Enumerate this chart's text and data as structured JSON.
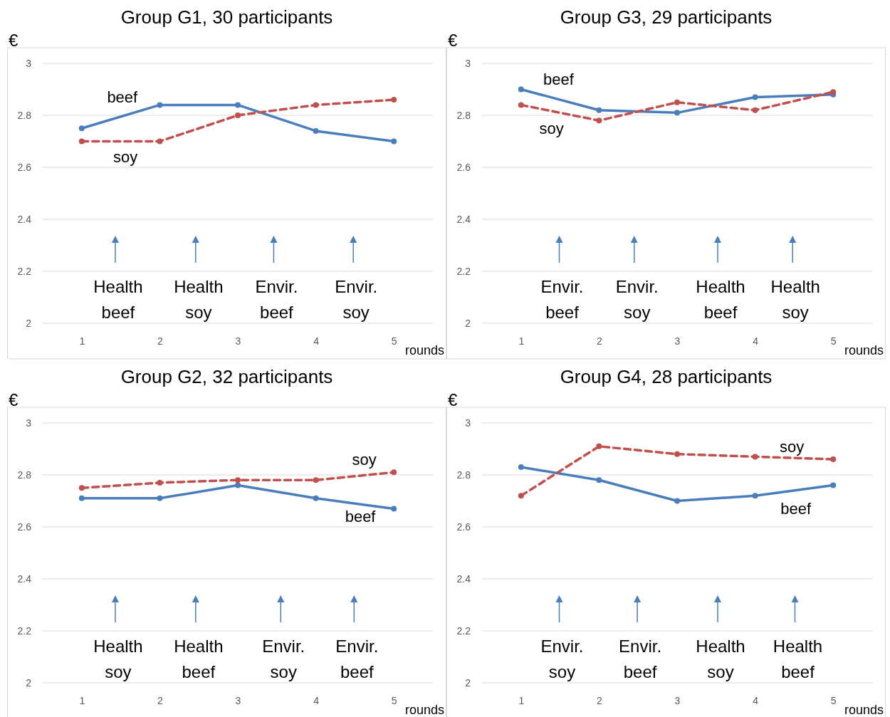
{
  "chart_data": [
    {
      "type": "line",
      "title": "Group G1, 30 participants",
      "xlabel": "rounds",
      "ylabel": "€",
      "x": [
        1,
        2,
        3,
        4,
        5
      ],
      "xlim": [
        0.5,
        5.5
      ],
      "xticks": [
        1,
        2,
        3,
        4,
        5
      ],
      "ylim": [
        2,
        3
      ],
      "yticks": [
        2,
        2.2,
        2.4,
        2.6,
        2.8,
        3
      ],
      "grid": "y",
      "marker": "circle",
      "series": [
        {
          "name": "beef",
          "color": "#4a7ebb",
          "line_style": "solid",
          "values": [
            2.75,
            2.84,
            2.84,
            2.74,
            2.7
          ]
        },
        {
          "name": "soy",
          "color": "#c0504d",
          "line_style": "dashed",
          "values": [
            2.7,
            2.7,
            2.8,
            2.84,
            2.86
          ]
        }
      ],
      "annotations": [
        "Health\nbeef",
        "Health\nsoy",
        "Envir.\nbeef",
        "Envir.\nsoy"
      ]
    },
    {
      "type": "line",
      "title": "Group G3, 29 participants",
      "xlabel": "rounds",
      "ylabel": "€",
      "x": [
        1,
        2,
        3,
        4,
        5
      ],
      "xlim": [
        0.5,
        5.5
      ],
      "xticks": [
        1,
        2,
        3,
        4,
        5
      ],
      "ylim": [
        2,
        3
      ],
      "yticks": [
        2,
        2.2,
        2.4,
        2.6,
        2.8,
        3
      ],
      "grid": "y",
      "marker": "circle",
      "series": [
        {
          "name": "beef",
          "color": "#4a7ebb",
          "line_style": "solid",
          "values": [
            2.9,
            2.82,
            2.81,
            2.87,
            2.88
          ]
        },
        {
          "name": "soy",
          "color": "#c0504d",
          "line_style": "dashed",
          "values": [
            2.84,
            2.78,
            2.85,
            2.82,
            2.89
          ]
        }
      ],
      "annotations": [
        "Envir.\nbeef",
        "Envir.\nsoy",
        "Health\nbeef",
        "Health\nsoy"
      ]
    },
    {
      "type": "line",
      "title": "Group G2, 32 participants",
      "xlabel": "rounds",
      "ylabel": "€",
      "x": [
        1,
        2,
        3,
        4,
        5
      ],
      "xlim": [
        0.5,
        5.5
      ],
      "xticks": [
        1,
        2,
        3,
        4,
        5
      ],
      "ylim": [
        2,
        3
      ],
      "yticks": [
        2,
        2.2,
        2.4,
        2.6,
        2.8,
        3
      ],
      "grid": "y",
      "marker": "circle",
      "series": [
        {
          "name": "beef",
          "color": "#4a7ebb",
          "line_style": "solid",
          "values": [
            2.71,
            2.71,
            2.76,
            2.71,
            2.67
          ]
        },
        {
          "name": "soy",
          "color": "#c0504d",
          "line_style": "dashed",
          "values": [
            2.75,
            2.77,
            2.78,
            2.78,
            2.81
          ]
        }
      ],
      "annotations": [
        "Health\nsoy",
        "Health\nbeef",
        "Envir.\nsoy",
        "Envir.\nbeef"
      ]
    },
    {
      "type": "line",
      "title": "Group G4, 28 participants",
      "xlabel": "rounds",
      "ylabel": "€",
      "x": [
        1,
        2,
        3,
        4,
        5
      ],
      "xlim": [
        0.5,
        5.5
      ],
      "xticks": [
        1,
        2,
        3,
        4,
        5
      ],
      "ylim": [
        2,
        3
      ],
      "yticks": [
        2,
        2.2,
        2.4,
        2.6,
        2.8,
        3
      ],
      "grid": "y",
      "marker": "circle",
      "series": [
        {
          "name": "beef",
          "color": "#4a7ebb",
          "line_style": "solid",
          "values": [
            2.83,
            2.78,
            2.7,
            2.72,
            2.76
          ]
        },
        {
          "name": "soy",
          "color": "#c0504d",
          "line_style": "dashed",
          "values": [
            2.72,
            2.91,
            2.88,
            2.87,
            2.86
          ]
        }
      ],
      "annotations": [
        "Envir.\nsoy",
        "Envir.\nbeef",
        "Health\nsoy",
        "Health\nbeef"
      ]
    }
  ]
}
